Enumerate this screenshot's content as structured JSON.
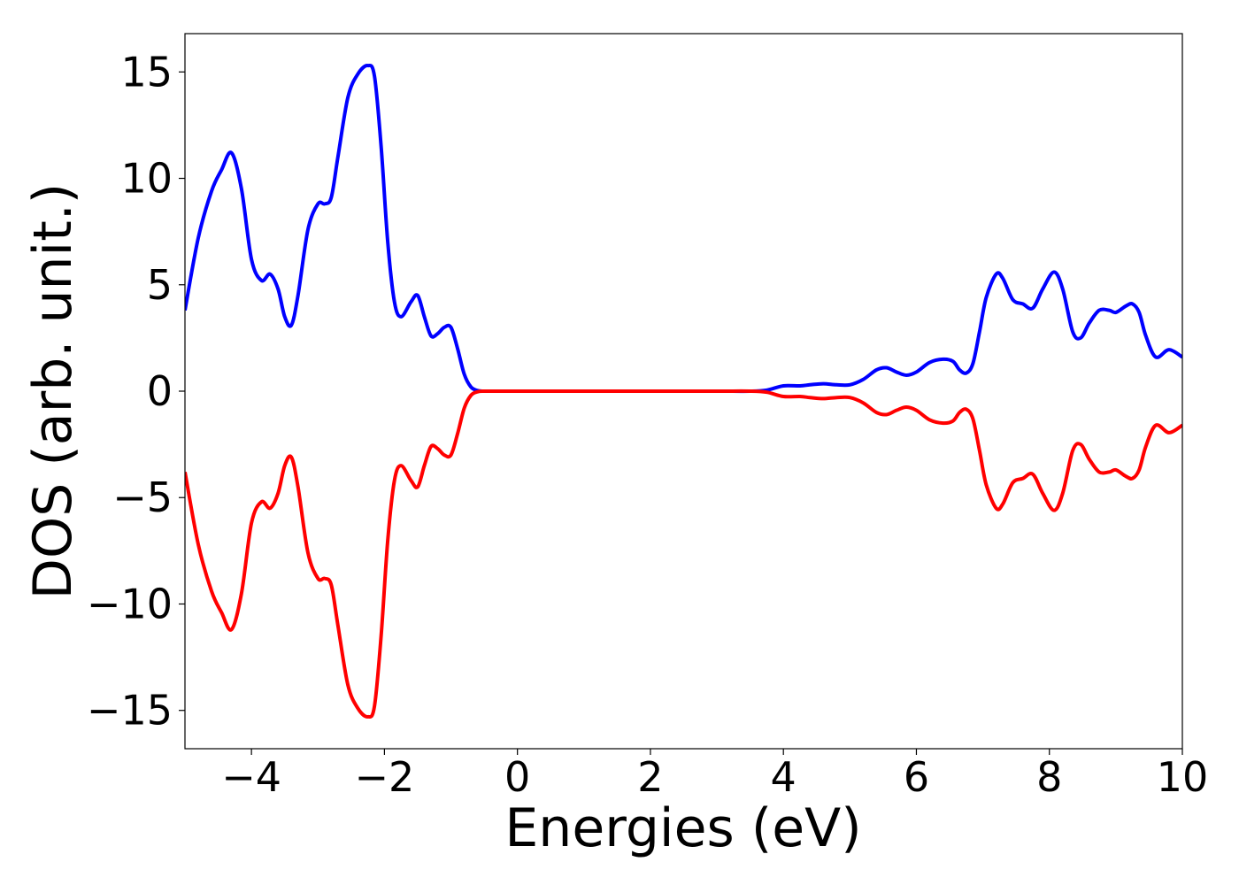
{
  "chart_data": {
    "type": "line",
    "title": "",
    "xlabel": "Energies (eV)",
    "ylabel": "DOS (arb. unit.)",
    "xlim": [
      -5,
      10
    ],
    "ylim": [
      -16.8,
      16.8
    ],
    "grid": false,
    "legend": "none",
    "xticks": [
      -4,
      -2,
      0,
      2,
      4,
      6,
      8,
      10
    ],
    "xtick_labels": [
      "−4",
      "−2",
      "0",
      "2",
      "4",
      "6",
      "8",
      "10"
    ],
    "yticks": [
      -15,
      -10,
      -5,
      0,
      5,
      10,
      15
    ],
    "ytick_labels": [
      "−15",
      "−10",
      "−5",
      "0",
      "5",
      "10",
      "15"
    ],
    "series": [
      {
        "color": "#0000ff",
        "x": [
          -5.0,
          -4.8,
          -4.6,
          -4.45,
          -4.3,
          -4.15,
          -4.0,
          -3.85,
          -3.72,
          -3.6,
          -3.5,
          -3.4,
          -3.3,
          -3.15,
          -3.0,
          -2.9,
          -2.8,
          -2.7,
          -2.55,
          -2.4,
          -2.25,
          -2.15,
          -2.05,
          -1.95,
          -1.85,
          -1.75,
          -1.6,
          -1.5,
          -1.4,
          -1.3,
          -1.2,
          -1.1,
          -1.0,
          -0.9,
          -0.8,
          -0.7,
          -0.6,
          -0.5,
          -0.3,
          0.0,
          1.0,
          2.0,
          3.0,
          3.5,
          3.75,
          4.0,
          4.25,
          4.4,
          4.6,
          4.8,
          5.0,
          5.2,
          5.4,
          5.55,
          5.7,
          5.85,
          6.0,
          6.2,
          6.4,
          6.55,
          6.65,
          6.75,
          6.85,
          6.95,
          7.05,
          7.2,
          7.3,
          7.45,
          7.6,
          7.75,
          7.9,
          8.07,
          8.2,
          8.35,
          8.47,
          8.6,
          8.75,
          8.9,
          9.0,
          9.15,
          9.25,
          9.35,
          9.45,
          9.6,
          9.8,
          10.0
        ],
        "y": [
          3.8,
          7.2,
          9.4,
          10.4,
          11.2,
          9.5,
          6.2,
          5.2,
          5.5,
          4.8,
          3.5,
          3.1,
          4.5,
          7.6,
          8.8,
          8.8,
          9.1,
          11.0,
          13.8,
          14.9,
          15.3,
          14.8,
          11.5,
          7.0,
          4.2,
          3.5,
          4.2,
          4.5,
          3.5,
          2.6,
          2.7,
          3.0,
          3.0,
          2.0,
          0.8,
          0.2,
          0.03,
          0.0,
          0.0,
          0.0,
          0.0,
          0.0,
          0.0,
          0.0,
          0.05,
          0.25,
          0.25,
          0.3,
          0.35,
          0.3,
          0.3,
          0.55,
          1.0,
          1.1,
          0.9,
          0.75,
          0.9,
          1.35,
          1.5,
          1.4,
          1.0,
          0.85,
          1.3,
          2.8,
          4.4,
          5.5,
          5.3,
          4.3,
          4.1,
          3.9,
          4.8,
          5.6,
          4.8,
          2.8,
          2.5,
          3.2,
          3.8,
          3.8,
          3.7,
          4.0,
          4.1,
          3.7,
          2.6,
          1.6,
          1.95,
          1.6
        ]
      },
      {
        "color": "#ff0000",
        "x": [
          -5.0,
          -4.8,
          -4.6,
          -4.45,
          -4.3,
          -4.15,
          -4.0,
          -3.85,
          -3.72,
          -3.6,
          -3.5,
          -3.4,
          -3.3,
          -3.15,
          -3.0,
          -2.9,
          -2.8,
          -2.7,
          -2.55,
          -2.4,
          -2.25,
          -2.15,
          -2.05,
          -1.95,
          -1.85,
          -1.75,
          -1.6,
          -1.5,
          -1.4,
          -1.3,
          -1.2,
          -1.1,
          -1.0,
          -0.9,
          -0.8,
          -0.7,
          -0.6,
          -0.5,
          -0.3,
          0.0,
          1.0,
          2.0,
          3.0,
          3.5,
          3.75,
          4.0,
          4.25,
          4.4,
          4.6,
          4.8,
          5.0,
          5.2,
          5.4,
          5.55,
          5.7,
          5.85,
          6.0,
          6.2,
          6.4,
          6.55,
          6.65,
          6.75,
          6.85,
          6.95,
          7.05,
          7.2,
          7.3,
          7.45,
          7.6,
          7.75,
          7.9,
          8.07,
          8.2,
          8.35,
          8.47,
          8.6,
          8.75,
          8.9,
          9.0,
          9.15,
          9.25,
          9.35,
          9.45,
          9.6,
          9.8,
          10.0
        ],
        "y": [
          -3.8,
          -7.2,
          -9.4,
          -10.4,
          -11.2,
          -9.5,
          -6.2,
          -5.2,
          -5.5,
          -4.8,
          -3.5,
          -3.1,
          -4.5,
          -7.6,
          -8.8,
          -8.8,
          -9.1,
          -11.0,
          -13.8,
          -14.9,
          -15.3,
          -14.8,
          -11.5,
          -7.0,
          -4.2,
          -3.5,
          -4.2,
          -4.5,
          -3.5,
          -2.6,
          -2.7,
          -3.0,
          -3.0,
          -2.0,
          -0.8,
          -0.2,
          -0.03,
          0.0,
          0.0,
          0.0,
          0.0,
          0.0,
          0.0,
          0.0,
          -0.05,
          -0.25,
          -0.25,
          -0.3,
          -0.35,
          -0.3,
          -0.3,
          -0.55,
          -1.0,
          -1.1,
          -0.9,
          -0.75,
          -0.9,
          -1.35,
          -1.5,
          -1.4,
          -1.0,
          -0.85,
          -1.3,
          -2.8,
          -4.4,
          -5.5,
          -5.3,
          -4.3,
          -4.1,
          -3.9,
          -4.8,
          -5.6,
          -4.8,
          -2.8,
          -2.5,
          -3.2,
          -3.8,
          -3.8,
          -3.7,
          -4.0,
          -4.1,
          -3.7,
          -2.6,
          -1.6,
          -1.95,
          -1.6
        ]
      }
    ]
  }
}
